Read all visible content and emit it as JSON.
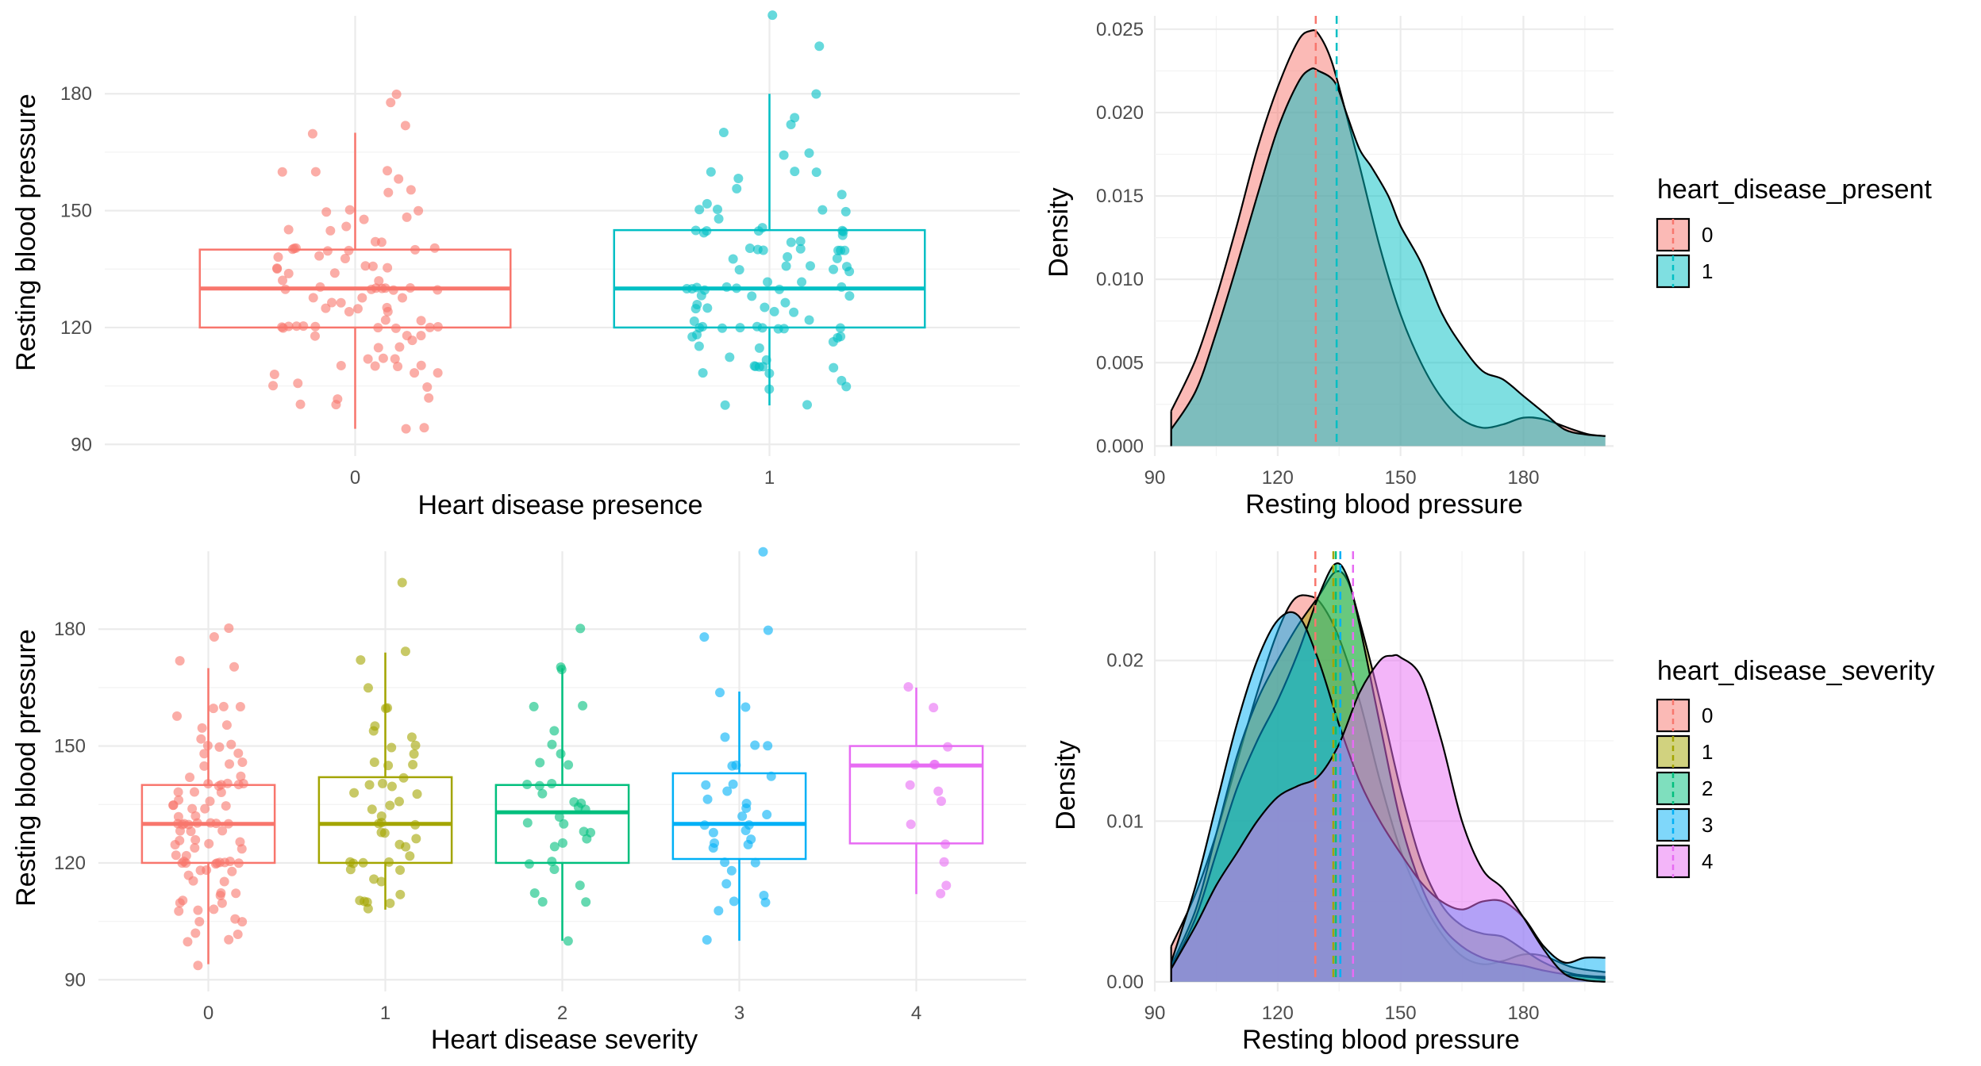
{
  "chart_data": [
    {
      "id": "box-presence",
      "type": "box",
      "xlabel": "Heart disease presence",
      "ylabel": "Resting blood pressure",
      "categories": [
        "0",
        "1"
      ],
      "colors": [
        "#F8766D",
        "#00BFC4"
      ],
      "yticks": [
        90,
        120,
        150,
        180
      ],
      "ylim": [
        87,
        200
      ],
      "boxes": [
        {
          "category": "0",
          "whisker_low": 94,
          "q1": 120,
          "median": 130,
          "q3": 140,
          "whisker_high": 170
        },
        {
          "category": "1",
          "whisker_low": 100,
          "q1": 120,
          "median": 130,
          "q3": 145,
          "whisker_high": 180
        }
      ],
      "points": [
        {
          "group": 0,
          "y": [
            178,
            180,
            172,
            170,
            160,
            160,
            160,
            158,
            155,
            155,
            150,
            150,
            150,
            148,
            148,
            146,
            145,
            145,
            142,
            142,
            140,
            140,
            140,
            140,
            140,
            140,
            140,
            138,
            138,
            138,
            136,
            136,
            135,
            135,
            135,
            134,
            134,
            132,
            132,
            130,
            130,
            130,
            130,
            130,
            130,
            130,
            130,
            130,
            128,
            128,
            128,
            126,
            126,
            125,
            125,
            125,
            124,
            124,
            122,
            122,
            120,
            120,
            120,
            120,
            120,
            120,
            120,
            120,
            120,
            120,
            118,
            118,
            118,
            117,
            115,
            115,
            112,
            112,
            112,
            110,
            110,
            110,
            110,
            108,
            108,
            108,
            106,
            105,
            105,
            102,
            102,
            100,
            100,
            94,
            94
          ]
        },
        {
          "group": 1,
          "y": [
            200,
            192,
            180,
            174,
            172,
            170,
            165,
            164,
            160,
            160,
            160,
            158,
            156,
            154,
            152,
            150,
            150,
            150,
            150,
            148,
            146,
            145,
            145,
            145,
            145,
            145,
            144,
            144,
            142,
            142,
            140,
            140,
            140,
            140,
            140,
            140,
            140,
            138,
            138,
            138,
            136,
            136,
            136,
            135,
            135,
            134,
            132,
            132,
            130,
            130,
            130,
            130,
            130,
            130,
            130,
            130,
            128,
            128,
            128,
            126,
            126,
            125,
            125,
            125,
            124,
            124,
            122,
            122,
            120,
            120,
            120,
            120,
            120,
            120,
            120,
            120,
            120,
            118,
            118,
            118,
            117,
            116,
            115,
            115,
            112,
            112,
            110,
            110,
            110,
            110,
            110,
            108,
            108,
            106,
            105,
            104,
            100,
            100
          ]
        }
      ]
    },
    {
      "id": "density-presence",
      "type": "density",
      "xlabel": "Resting blood pressure",
      "ylabel": "Density",
      "xticks": [
        90,
        120,
        150,
        180
      ],
      "xlim": [
        90,
        202
      ],
      "yticks": [
        0,
        0.005,
        0.01,
        0.015,
        0.02,
        0.025
      ],
      "ytick_labels": [
        "0.000",
        "0.005",
        "0.010",
        "0.015",
        "0.020",
        "0.025"
      ],
      "ylim": [
        -0.0006,
        0.0258
      ],
      "legend_title": "heart_disease_present",
      "legend_position": "right",
      "series": [
        {
          "name": "0",
          "color": "#F8766D",
          "mean": 129.3,
          "x": [
            94,
            100,
            105,
            110,
            115,
            120,
            125,
            128,
            130,
            133,
            136,
            140,
            145,
            150,
            155,
            160,
            165,
            170,
            175,
            180,
            185,
            192,
            196,
            200
          ],
          "y": [
            0.0021,
            0.0052,
            0.0089,
            0.0132,
            0.0178,
            0.0215,
            0.0243,
            0.0249,
            0.0247,
            0.0232,
            0.0206,
            0.0168,
            0.0119,
            0.0079,
            0.005,
            0.0029,
            0.0016,
            0.0011,
            0.0013,
            0.0017,
            0.0016,
            0.001,
            0.0007,
            0.0006
          ]
        },
        {
          "name": "1",
          "color": "#00BFC4",
          "mean": 134.4,
          "x": [
            94,
            100,
            105,
            110,
            115,
            120,
            125,
            128,
            130,
            134,
            137,
            140,
            143,
            147,
            150,
            155,
            160,
            165,
            170,
            175,
            180,
            185,
            190,
            195,
            200
          ],
          "y": [
            0.001,
            0.0033,
            0.0068,
            0.0108,
            0.015,
            0.019,
            0.0218,
            0.0226,
            0.0225,
            0.0218,
            0.0198,
            0.0178,
            0.0167,
            0.015,
            0.0132,
            0.011,
            0.008,
            0.006,
            0.0045,
            0.004,
            0.003,
            0.002,
            0.001,
            0.0007,
            0.0006
          ]
        }
      ]
    },
    {
      "id": "box-severity",
      "type": "box",
      "xlabel": "Heart disease severity",
      "ylabel": "Resting blood pressure",
      "categories": [
        "0",
        "1",
        "2",
        "3",
        "4"
      ],
      "colors": [
        "#F8766D",
        "#A3A500",
        "#00BF7D",
        "#00B0F6",
        "#E76BF3"
      ],
      "yticks": [
        90,
        120,
        150,
        180
      ],
      "ylim": [
        87,
        200
      ],
      "boxes": [
        {
          "category": "0",
          "whisker_low": 94,
          "q1": 120,
          "median": 130,
          "q3": 140,
          "whisker_high": 170
        },
        {
          "category": "1",
          "whisker_low": 108,
          "q1": 120,
          "median": 130,
          "q3": 142,
          "whisker_high": 174
        },
        {
          "category": "2",
          "whisker_low": 100,
          "q1": 120,
          "median": 133,
          "q3": 140,
          "whisker_high": 170
        },
        {
          "category": "3",
          "whisker_low": 100,
          "q1": 121,
          "median": 130,
          "q3": 143,
          "whisker_high": 164
        },
        {
          "category": "4",
          "whisker_low": 112,
          "q1": 125,
          "median": 145,
          "q3": 150,
          "whisker_high": 165
        }
      ],
      "points": [
        {
          "group": 0,
          "y": [
            180,
            178,
            172,
            170,
            160,
            160,
            160,
            158,
            155,
            155,
            152,
            150,
            150,
            150,
            148,
            148,
            146,
            145,
            145,
            142,
            142,
            140,
            140,
            140,
            140,
            140,
            140,
            138,
            138,
            138,
            136,
            136,
            135,
            135,
            135,
            134,
            134,
            132,
            132,
            130,
            130,
            130,
            130,
            130,
            130,
            130,
            130,
            128,
            128,
            128,
            126,
            126,
            125,
            125,
            125,
            124,
            124,
            122,
            122,
            120,
            120,
            120,
            120,
            120,
            120,
            120,
            120,
            120,
            118,
            118,
            118,
            117,
            115,
            115,
            112,
            112,
            112,
            110,
            110,
            110,
            108,
            108,
            108,
            106,
            105,
            105,
            102,
            102,
            100,
            100,
            94
          ]
        },
        {
          "group": 1,
          "y": [
            192,
            174,
            172,
            165,
            160,
            160,
            155,
            154,
            152,
            150,
            150,
            148,
            146,
            145,
            145,
            142,
            140,
            140,
            140,
            138,
            138,
            136,
            135,
            134,
            132,
            130,
            130,
            130,
            128,
            128,
            126,
            125,
            124,
            122,
            120,
            120,
            120,
            120,
            118,
            118,
            116,
            115,
            112,
            110,
            110,
            110,
            110,
            108
          ]
        },
        {
          "group": 2,
          "y": [
            180,
            170,
            170,
            160,
            160,
            154,
            150,
            148,
            146,
            145,
            140,
            140,
            140,
            138,
            136,
            135,
            134,
            134,
            132,
            130,
            130,
            128,
            128,
            126,
            125,
            124,
            120,
            120,
            118,
            114,
            112,
            110,
            110,
            100
          ]
        },
        {
          "group": 3,
          "y": [
            200,
            180,
            178,
            164,
            160,
            152,
            150,
            150,
            145,
            145,
            142,
            140,
            140,
            138,
            136,
            135,
            134,
            132,
            132,
            130,
            130,
            128,
            128,
            126,
            125,
            125,
            124,
            120,
            120,
            118,
            115,
            112,
            110,
            110,
            108,
            100
          ]
        },
        {
          "group": 4,
          "y": [
            165,
            160,
            150,
            145,
            145,
            145,
            140,
            138,
            136,
            130,
            125,
            120,
            114,
            112
          ]
        }
      ]
    },
    {
      "id": "density-severity",
      "type": "density",
      "xlabel": "Resting blood pressure",
      "ylabel": "Density",
      "xticks": [
        90,
        120,
        150,
        180
      ],
      "xlim": [
        90,
        202
      ],
      "yticks": [
        0,
        0.01,
        0.02
      ],
      "ytick_labels": [
        "0.00",
        "0.01",
        "0.02"
      ],
      "ylim": [
        -0.0006,
        0.0268
      ],
      "legend_title": "heart_disease_severity",
      "legend_position": "right",
      "series": [
        {
          "name": "0",
          "color": "#F8766D",
          "mean": 129.2,
          "x": [
            94,
            100,
            105,
            110,
            115,
            120,
            124,
            128,
            131,
            135,
            140,
            145,
            150,
            155,
            160,
            165,
            170,
            175,
            180,
            185,
            192,
            200
          ],
          "y": [
            0.0022,
            0.0055,
            0.0092,
            0.0136,
            0.018,
            0.0218,
            0.0238,
            0.024,
            0.0234,
            0.0214,
            0.0175,
            0.0125,
            0.0082,
            0.0052,
            0.003,
            0.0016,
            0.0011,
            0.0013,
            0.0017,
            0.0016,
            0.0009,
            0.0006
          ]
        },
        {
          "name": "1",
          "color": "#A3A500",
          "mean": 133.6,
          "x": [
            94,
            100,
            105,
            110,
            115,
            120,
            125,
            130,
            134,
            137,
            140,
            145,
            150,
            155,
            160,
            165,
            170,
            175,
            180,
            185,
            192,
            200
          ],
          "y": [
            0.001,
            0.0045,
            0.0092,
            0.014,
            0.0175,
            0.02,
            0.0222,
            0.024,
            0.0255,
            0.025,
            0.0225,
            0.0175,
            0.012,
            0.0075,
            0.0048,
            0.0035,
            0.003,
            0.0028,
            0.002,
            0.0012,
            0.0005,
            0.0003
          ]
        },
        {
          "name": "2",
          "color": "#00BF7D",
          "mean": 134.2,
          "x": [
            94,
            100,
            105,
            110,
            115,
            120,
            125,
            130,
            134,
            137,
            140,
            145,
            150,
            155,
            160,
            165,
            170,
            175,
            180,
            185,
            192,
            200
          ],
          "y": [
            0.0008,
            0.004,
            0.008,
            0.012,
            0.015,
            0.0175,
            0.0205,
            0.024,
            0.026,
            0.0252,
            0.0222,
            0.016,
            0.01,
            0.006,
            0.0035,
            0.0022,
            0.0015,
            0.0012,
            0.001,
            0.0007,
            0.0004,
            0.0002
          ]
        },
        {
          "name": "3",
          "color": "#00B0F6",
          "mean": 135.3,
          "x": [
            94,
            100,
            105,
            110,
            115,
            120,
            125,
            130,
            135,
            140,
            145,
            150,
            155,
            160,
            165,
            170,
            175,
            180,
            185,
            190,
            195,
            200
          ],
          "y": [
            0.0012,
            0.006,
            0.011,
            0.016,
            0.02,
            0.0225,
            0.0228,
            0.02,
            0.016,
            0.0125,
            0.01,
            0.008,
            0.0062,
            0.005,
            0.0045,
            0.005,
            0.005,
            0.004,
            0.0022,
            0.0012,
            0.0015,
            0.0015
          ]
        },
        {
          "name": "4",
          "color": "#E76BF3",
          "mean": 138.4,
          "x": [
            94,
            100,
            105,
            110,
            115,
            120,
            125,
            130,
            135,
            140,
            145,
            148,
            150,
            155,
            160,
            165,
            170,
            175,
            180,
            185,
            190,
            195,
            200
          ],
          "y": [
            0.0008,
            0.0035,
            0.006,
            0.008,
            0.01,
            0.0115,
            0.0122,
            0.0128,
            0.0148,
            0.018,
            0.02,
            0.0203,
            0.0202,
            0.019,
            0.015,
            0.01,
            0.007,
            0.0058,
            0.004,
            0.002,
            0.0005,
            0.0001,
            0.0
          ]
        }
      ]
    }
  ]
}
